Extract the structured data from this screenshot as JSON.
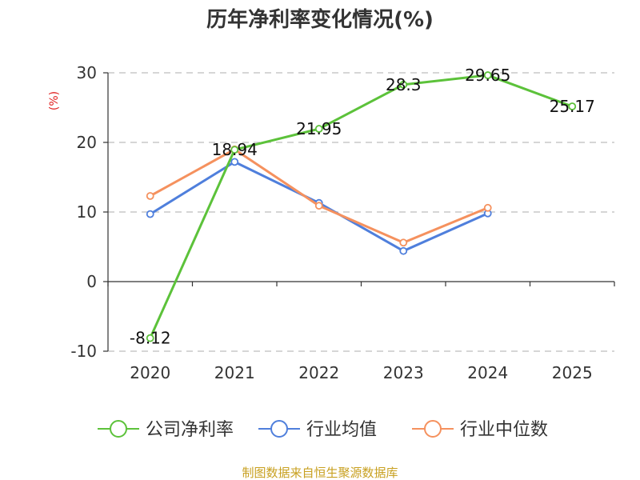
{
  "chart_data": {
    "type": "line",
    "title": "历年净利率变化情况(%)",
    "ylabel": "(%)",
    "categories": [
      "2020",
      "2021",
      "2022",
      "2023",
      "2024",
      "2025"
    ],
    "ylim": [
      -10,
      30
    ],
    "yticks": [
      30,
      20,
      10,
      0,
      -10
    ],
    "grid": true,
    "legend_position": "bottom",
    "series": [
      {
        "name": "公司净利率",
        "values": [
          -8.12,
          18.94,
          21.95,
          28.3,
          29.65,
          25.17
        ],
        "color": "#5cc23a",
        "labels": [
          "-8.12",
          "18.94",
          "21.95",
          "28.3",
          "29.65",
          "25.17"
        ]
      },
      {
        "name": "行业均值",
        "values": [
          9.7,
          17.2,
          11.3,
          4.4,
          9.8,
          null
        ],
        "color": "#4f7fdc"
      },
      {
        "name": "行业中位数",
        "values": [
          12.3,
          19.0,
          10.9,
          5.6,
          10.6,
          null
        ],
        "color": "#f5915e"
      }
    ]
  },
  "source": "制图数据来自恒生聚源数据库"
}
